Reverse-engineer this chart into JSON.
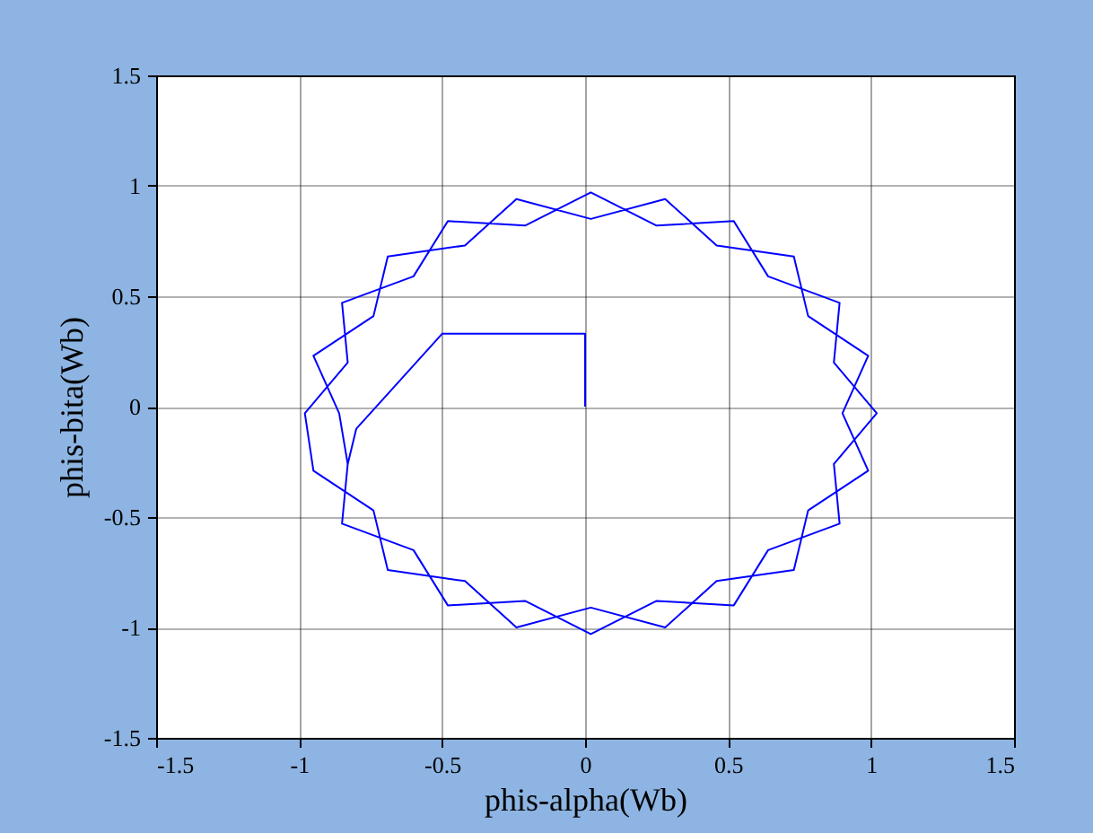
{
  "chart_data": {
    "type": "line",
    "xlabel": "phis-alpha(Wb)",
    "ylabel": "phis-bita(Wb)",
    "xlim": [
      -1.5,
      1.5
    ],
    "ylim": [
      -1.5,
      1.5
    ],
    "xticks": [
      -1.5,
      -1,
      -0.5,
      0,
      0.5,
      1,
      1.5
    ],
    "yticks": [
      -1.5,
      -1,
      -0.5,
      0,
      0.5,
      1,
      1.5
    ],
    "grid": true,
    "series": [
      {
        "color": "#0000ff",
        "x": [
          0,
          0,
          -0.5,
          -0.8,
          -0.83,
          -0.85,
          -0.6,
          -0.48,
          -0.21,
          0.02,
          0.25,
          0.52,
          0.64,
          0.89,
          0.87,
          1.02,
          0.87,
          0.89,
          0.64,
          0.52,
          0.25,
          0.02,
          -0.21,
          -0.48,
          -0.6,
          -0.85,
          -0.83,
          -0.98,
          -0.95,
          -0.74,
          -0.69,
          -0.42,
          -0.24,
          0.02,
          0.28,
          0.46,
          0.73,
          0.78,
          0.99,
          0.9,
          0.99,
          0.78,
          0.73,
          0.46,
          0.28,
          0.02,
          -0.24,
          -0.42,
          -0.69,
          -0.74,
          -0.95,
          -0.86,
          -0.83
        ],
        "values": [
          0,
          0.33,
          0.33,
          -0.1,
          -0.26,
          -0.53,
          -0.65,
          -0.9,
          -0.88,
          -1.03,
          -0.88,
          -0.9,
          -0.65,
          -0.53,
          -0.26,
          -0.03,
          0.2,
          0.47,
          0.59,
          0.84,
          0.82,
          0.97,
          0.82,
          0.84,
          0.59,
          0.47,
          0.2,
          -0.03,
          -0.29,
          -0.47,
          -0.74,
          -0.79,
          -1.0,
          -0.91,
          -1.0,
          -0.79,
          -0.74,
          -0.47,
          -0.29,
          -0.03,
          0.23,
          0.41,
          0.68,
          0.73,
          0.94,
          0.85,
          0.94,
          0.73,
          0.68,
          0.41,
          0.23,
          -0.03,
          -0.26
        ]
      }
    ]
  }
}
